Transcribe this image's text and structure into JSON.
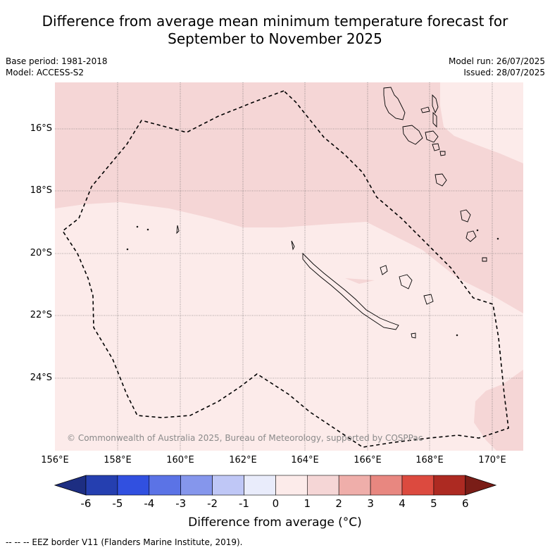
{
  "header": {
    "title_line1": "Difference from average mean minimum temperature forecast for",
    "title_line2": "September to November 2025",
    "base_period": "Base period: 1981-2018",
    "model": "Model: ACCESS-S2",
    "model_run": "Model run: 26/07/2025",
    "issued": "Issued: 28/07/2025"
  },
  "map": {
    "lat_labels": [
      "16°S",
      "18°S",
      "20°S",
      "22°S",
      "24°S"
    ],
    "lon_labels": [
      "156°E",
      "158°E",
      "160°E",
      "162°E",
      "164°E",
      "166°E",
      "168°E",
      "170°E"
    ],
    "copyright": "© Commonwealth of Australia 2025, Bureau of Meteorology, supported by COSPPac",
    "colors": {
      "zone_0_1": "#fcebea",
      "zone_1_2": "#f5d6d6",
      "zone_warm": "#f5d6d6"
    }
  },
  "colorbar": {
    "ticks": [
      "-6",
      "-5",
      "-4",
      "-3",
      "-2",
      "-1",
      "0",
      "1",
      "2",
      "3",
      "4",
      "5",
      "6"
    ],
    "colors": [
      "#1d2e82",
      "#253fb0",
      "#3150e0",
      "#5b73e6",
      "#8596ec",
      "#bfc7f6",
      "#e9ecfb",
      "#fcebea",
      "#f5d6d6",
      "#efaeaa",
      "#e88780",
      "#dc4a3f",
      "#ad2a22",
      "#7a1d17"
    ],
    "title": "Difference from average (°C)"
  },
  "footer": {
    "legend": "--  --  -- EEZ border V11 (Flanders Marine Institute, 2019)."
  }
}
